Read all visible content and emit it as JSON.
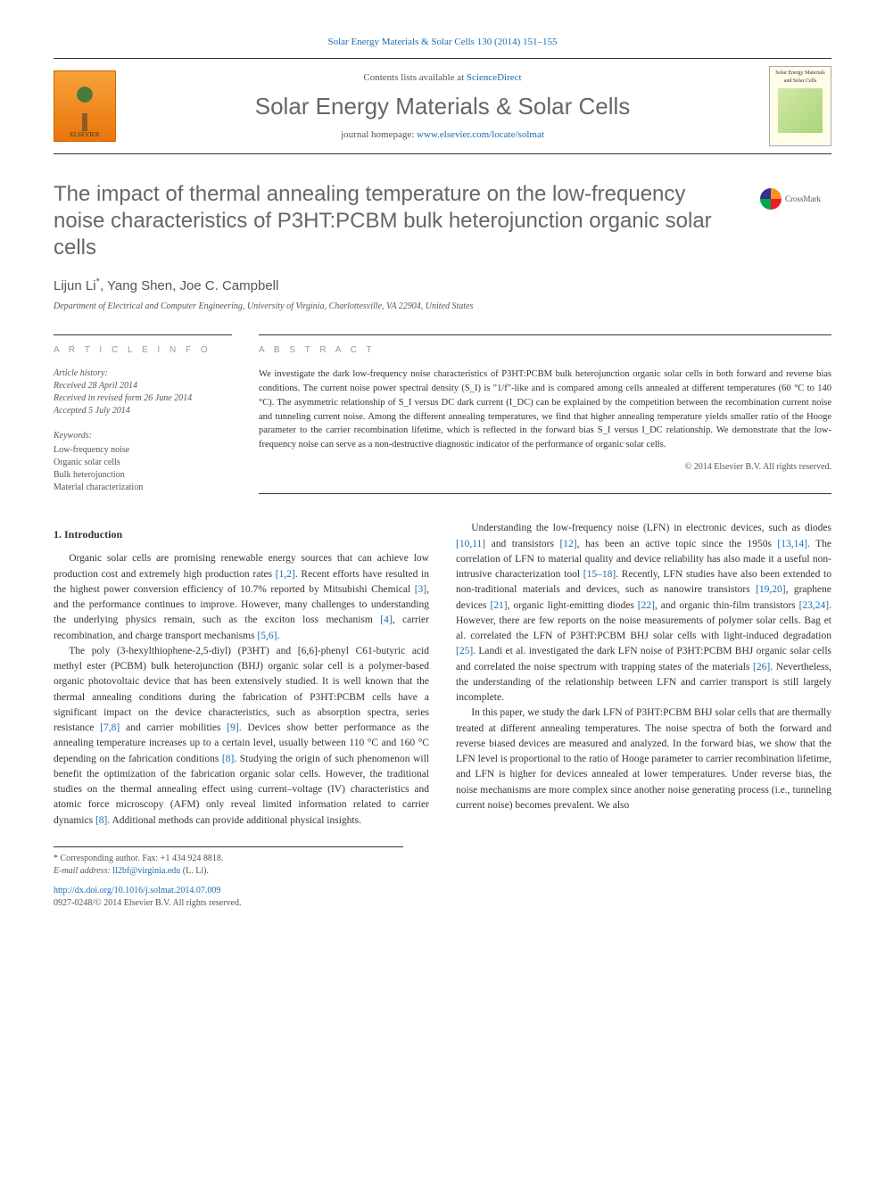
{
  "colors": {
    "link": "#1a6bb0",
    "text": "#333333",
    "heading_gray": "#666666",
    "label_gray": "#999999",
    "muted": "#555555",
    "elsevier_orange_top": "#f8a23b",
    "elsevier_orange_bottom": "#e8750a",
    "cover_bg": "#fffde7"
  },
  "typography": {
    "title_fontsize_pt": 24,
    "journal_fontsize_pt": 26,
    "body_fontsize_pt": 11.5,
    "abstract_fontsize_pt": 10.5,
    "info_fontsize_pt": 10
  },
  "top_link": {
    "journal": "Solar Energy Materials & Solar Cells",
    "citation": "130 (2014) 151–155"
  },
  "header": {
    "contents_prefix": "Contents lists available at ",
    "contents_link": "ScienceDirect",
    "journal_name": "Solar Energy Materials & Solar Cells",
    "homepage_prefix": "journal homepage: ",
    "homepage_url": "www.elsevier.com/locate/solmat",
    "elsevier_label": "ELSEVIER",
    "cover_text": "Solar Energy Materials and Solar Cells"
  },
  "crossmark": {
    "label": "CrossMark"
  },
  "title": "The impact of thermal annealing temperature on the low-frequency noise characteristics of P3HT:PCBM bulk heterojunction organic solar cells",
  "authors": {
    "list": "Lijun Li",
    "corr_marker": "*",
    "rest": ", Yang Shen, Joe C. Campbell"
  },
  "affiliation": "Department of Electrical and Computer Engineering, University of Virginia, Charlottesville, VA 22904, United States",
  "article_info": {
    "heading": "A R T I C L E  I N F O",
    "history_label": "Article history:",
    "received": "Received 28 April 2014",
    "revised": "Received in revised form 26 June 2014",
    "accepted": "Accepted 5 July 2014",
    "keywords_label": "Keywords:",
    "keywords": [
      "Low-frequency noise",
      "Organic solar cells",
      "Bulk heterojunction",
      "Material characterization"
    ]
  },
  "abstract": {
    "heading": "A B S T R A C T",
    "text": "We investigate the dark low-frequency noise characteristics of P3HT:PCBM bulk heterojunction organic solar cells in both forward and reverse bias conditions. The current noise power spectral density (S_I) is \"1/f\"-like and is compared among cells annealed at different temperatures (60 °C to 140 °C). The asymmetric relationship of S_I versus DC dark current (I_DC) can be explained by the competition between the recombination current noise and tunneling current noise. Among the different annealing temperatures, we find that higher annealing temperature yields smaller ratio of the Hooge parameter to the carrier recombination lifetime, which is reflected in the forward bias S_I versus I_DC relationship. We demonstrate that the low-frequency noise can serve as a non-destructive diagnostic indicator of the performance of organic solar cells.",
    "copyright": "© 2014 Elsevier B.V. All rights reserved."
  },
  "body": {
    "section1_heading": "1.  Introduction",
    "p1a": "Organic solar cells are promising renewable energy sources that can achieve low production cost and extremely high production rates ",
    "ref1": "[1,2]",
    "p1b": ". Recent efforts have resulted in the highest power conversion efficiency of 10.7% reported by Mitsubishi Chemical ",
    "ref3": "[3]",
    "p1c": ", and the performance continues to improve. However, many challenges to understanding the underlying physics remain, such as the exciton loss mechanism ",
    "ref4": "[4]",
    "p1d": ", carrier recombination, and charge transport mechanisms ",
    "ref56": "[5,6]",
    "p1e": ".",
    "p2a": "The poly (3-hexylthiophene-2,5-diyl) (P3HT) and [6,6]-phenyl C61-butyric acid methyl ester (PCBM) bulk heterojunction (BHJ) organic solar cell is a polymer-based organic photovoltaic device that has been extensively studied. It is well known that the thermal annealing conditions during the fabrication of P3HT:PCBM cells have a significant impact on the device characteristics, such as absorption spectra, series resistance ",
    "ref78": "[7,8]",
    "p2b": " and carrier mobilities ",
    "ref9": "[9]",
    "p2c": ". Devices show better performance as the annealing temperature increases up to a certain level, usually between 110 °C and 160 °C depending on the fabrication conditions ",
    "ref8": "[8]",
    "p2d": ". Studying the origin of such phenomenon will benefit the optimization of the fabrication organic solar cells. However, the traditional studies on the thermal annealing effect using current–voltage (IV) characteristics and atomic force microscopy (AFM) only ",
    "p2e": "reveal limited information related to carrier dynamics ",
    "ref8b": "[8]",
    "p2f": ". Additional methods can provide additional physical insights.",
    "p3a": "Understanding the low-frequency noise (LFN) in electronic devices, such as diodes ",
    "ref1011": "[10,11]",
    "p3b": " and transistors ",
    "ref12": "[12]",
    "p3c": ", has been an active topic since the 1950s ",
    "ref1314": "[13,14]",
    "p3d": ". The correlation of LFN to material quality and device reliability has also made it a useful non-intrusive characterization tool ",
    "ref1518": "[15–18]",
    "p3e": ". Recently, LFN studies have also been extended to non-traditional materials and devices, such as nanowire transistors ",
    "ref1920": "[19,20]",
    "p3f": ", graphene devices ",
    "ref21": "[21]",
    "p3g": ", organic light-emitting diodes ",
    "ref22": "[22]",
    "p3h": ", and organic thin-film transistors ",
    "ref2324": "[23,24]",
    "p3i": ". However, there are few reports on the noise measurements of polymer solar cells. Bag et al. correlated the LFN of P3HT:PCBM BHJ solar cells with light-induced degradation ",
    "ref25": "[25]",
    "p3j": ". Landi et al. investigated the dark LFN noise of P3HT:PCBM BHJ organic solar cells and correlated the noise spectrum with trapping states of the materials ",
    "ref26": "[26]",
    "p3k": ". Nevertheless, the understanding of the relationship between LFN and carrier transport is still largely incomplete.",
    "p4": "In this paper, we study the dark LFN of P3HT:PCBM BHJ solar cells that are thermally treated at different annealing temperatures. The noise spectra of both the forward and reverse biased devices are measured and analyzed. In the forward bias, we show that the LFN level is proportional to the ratio of Hooge parameter to carrier recombination lifetime, and LFN is higher for devices annealed at lower temperatures. Under reverse bias, the noise mechanisms are more complex since another noise generating process (i.e., tunneling current noise) becomes prevalent. We also"
  },
  "footnote": {
    "corr": "* Corresponding author. Fax: +1 434 924 8818.",
    "email_label": "E-mail address: ",
    "email": "ll2bf@virginia.edu",
    "email_suffix": " (L. Li)."
  },
  "doi": {
    "url": "http://dx.doi.org/10.1016/j.solmat.2014.07.009",
    "issn_line": "0927-0248/© 2014 Elsevier B.V. All rights reserved."
  }
}
